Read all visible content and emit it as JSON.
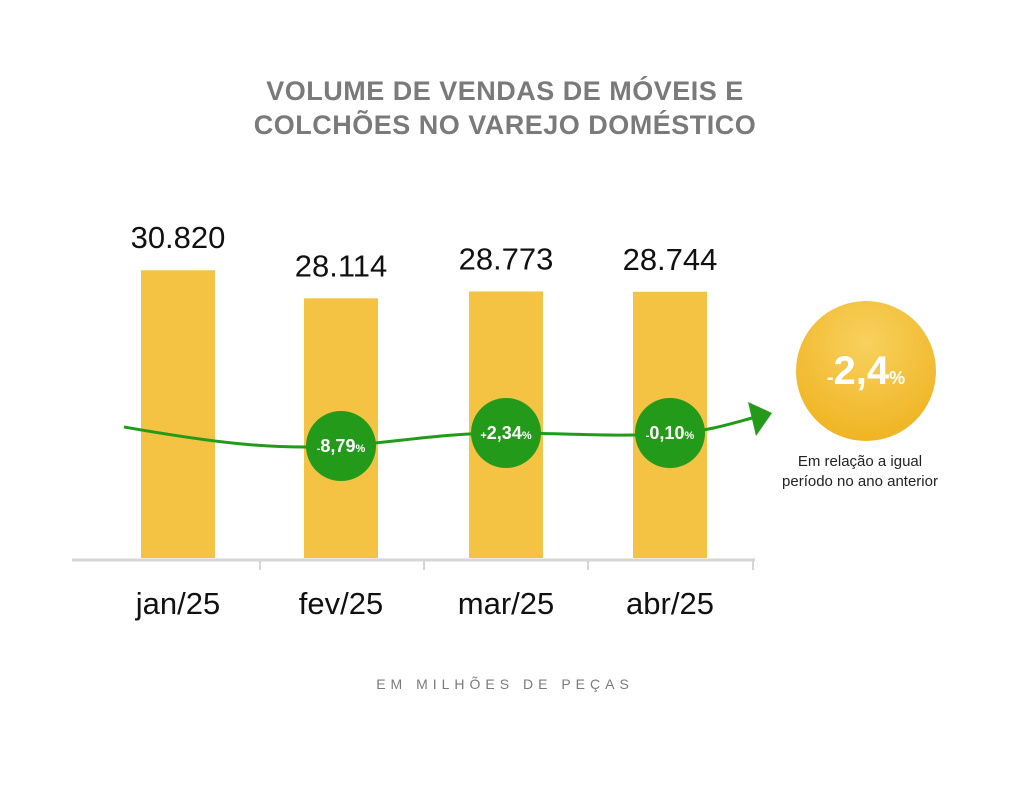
{
  "title_lines": [
    "VOLUME DE VENDAS DE MÓVEIS E",
    "COLCHÕES NO VAREJO DOMÉSTICO"
  ],
  "chart_data": {
    "type": "bar",
    "title": "VOLUME DE VENDAS DE MÓVEIS E COLCHÕES NO VAREJO DOMÉSTICO",
    "categories": [
      "jan/25",
      "fev/25",
      "mar/25",
      "abr/25"
    ],
    "values": [
      30820,
      28114,
      28773,
      28744
    ],
    "value_labels": [
      "30.820",
      "28.114",
      "28.773",
      "28.744"
    ],
    "changes": [
      {
        "category": "fev/25",
        "sign": "-",
        "value": "8,79",
        "unit": "%"
      },
      {
        "category": "mar/25",
        "sign": "+",
        "value": "2,34",
        "unit": "%"
      },
      {
        "category": "abr/25",
        "sign": "-",
        "value": "0,10",
        "unit": "%"
      }
    ],
    "summary": {
      "sign": "-",
      "value": "2,4",
      "unit": "%"
    },
    "unit_note": "EM MILHÕES DE PEÇAS",
    "comparison_note_lines": [
      "Em relação a igual",
      "período no ano anterior"
    ],
    "colors": {
      "bar": "#F4C343",
      "trend": "#249A1B",
      "summary_circle": "#F2BE32",
      "axis": "#D6D6D6"
    },
    "grid": false,
    "legend": "none"
  }
}
